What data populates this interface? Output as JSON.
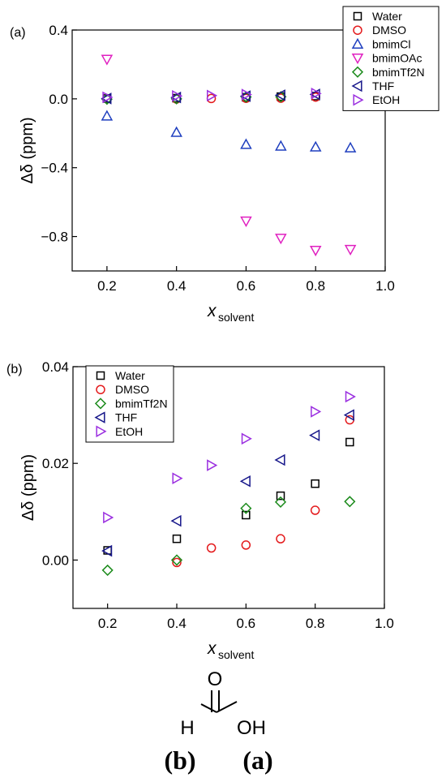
{
  "molecule": {
    "atom_o": "O",
    "atom_h": "H",
    "atom_oh": "OH"
  },
  "bottom_labels": {
    "left": "(b)",
    "right": "(a)"
  },
  "chart_data": [
    {
      "panel_label": "(a)",
      "type": "scatter",
      "xlabel_main": "x",
      "xlabel_sub": "solvent",
      "ylabel": "Δδ (ppm)",
      "xlim": [
        0.1,
        1.0
      ],
      "ylim": [
        -1.0,
        0.4
      ],
      "xticks": [
        0.2,
        0.4,
        0.6,
        0.8,
        1.0
      ],
      "xtick_labels": [
        "0.2",
        "0.4",
        "0.6",
        "0.8",
        "1.0"
      ],
      "yticks": [
        0.4,
        0.0,
        -0.4,
        -0.8
      ],
      "ytick_labels": [
        "0.4",
        "0.0",
        "−0.4",
        "−0.8"
      ],
      "grid": false,
      "legend_position": "top-right",
      "series": [
        {
          "name": "Water",
          "marker": "square",
          "color": "#000000",
          "x": [
            0.2,
            0.4,
            0.6,
            0.7,
            0.8,
            0.9
          ],
          "y": [
            0.002,
            0.004,
            0.009,
            0.013,
            0.016,
            0.024
          ]
        },
        {
          "name": "DMSO",
          "marker": "circle",
          "color": "#e41a1c",
          "x": [
            0.4,
            0.5,
            0.6,
            0.7,
            0.8,
            0.9
          ],
          "y": [
            -0.001,
            0.002,
            0.003,
            0.004,
            0.01,
            0.029
          ]
        },
        {
          "name": "bmimCl",
          "marker": "triangle-up",
          "color": "#1f3fbf",
          "x": [
            0.2,
            0.4,
            0.6,
            0.7,
            0.8,
            0.9
          ],
          "y": [
            -0.1,
            -0.195,
            -0.265,
            -0.275,
            -0.28,
            -0.285
          ]
        },
        {
          "name": "bmimOAc",
          "marker": "triangle-down",
          "color": "#e020c0",
          "x": [
            0.2,
            0.6,
            0.7,
            0.8,
            0.9
          ],
          "y": [
            0.23,
            -0.71,
            -0.81,
            -0.88,
            -0.875
          ]
        },
        {
          "name": "bmimTf2N",
          "marker": "diamond",
          "color": "#1a8a1a",
          "x": [
            0.2,
            0.4,
            0.6,
            0.7,
            0.9
          ],
          "y": [
            -0.002,
            0.0,
            0.011,
            0.012,
            0.012
          ]
        },
        {
          "name": "THF",
          "marker": "triangle-left",
          "color": "#16168a",
          "x": [
            0.2,
            0.4,
            0.6,
            0.7,
            0.8,
            0.9
          ],
          "y": [
            0.002,
            0.008,
            0.016,
            0.021,
            0.026,
            0.03
          ]
        },
        {
          "name": "EtOH",
          "marker": "triangle-right",
          "color": "#9b30e0",
          "x": [
            0.2,
            0.4,
            0.5,
            0.6,
            0.8,
            0.9
          ],
          "y": [
            0.009,
            0.017,
            0.019,
            0.025,
            0.031,
            0.034
          ]
        }
      ]
    },
    {
      "panel_label": "(b)",
      "type": "scatter",
      "xlabel_main": "x",
      "xlabel_sub": "solvent",
      "ylabel": "Δδ (ppm)",
      "xlim": [
        0.1,
        1.0
      ],
      "ylim": [
        -0.01,
        0.04
      ],
      "xticks": [
        0.2,
        0.4,
        0.6,
        0.8,
        1.0
      ],
      "xtick_labels": [
        "0.2",
        "0.4",
        "0.6",
        "0.8",
        "1.0"
      ],
      "yticks": [
        0.04,
        0.02,
        0.0
      ],
      "ytick_labels": [
        "0.04",
        "0.02",
        "0.00"
      ],
      "grid": false,
      "legend_position": "top-left",
      "series": [
        {
          "name": "Water",
          "marker": "square",
          "color": "#000000",
          "x": [
            0.2,
            0.4,
            0.6,
            0.7,
            0.8,
            0.9
          ],
          "y": [
            0.002,
            0.0044,
            0.0093,
            0.0133,
            0.0158,
            0.0244
          ]
        },
        {
          "name": "DMSO",
          "marker": "circle",
          "color": "#e41a1c",
          "x": [
            0.4,
            0.5,
            0.6,
            0.7,
            0.8,
            0.9
          ],
          "y": [
            -0.0005,
            0.0025,
            0.0031,
            0.0044,
            0.0103,
            0.029
          ]
        },
        {
          "name": "bmimTf2N",
          "marker": "diamond",
          "color": "#1a8a1a",
          "x": [
            0.2,
            0.4,
            0.6,
            0.7,
            0.9
          ],
          "y": [
            -0.0021,
            0.0,
            0.0107,
            0.012,
            0.0121
          ]
        },
        {
          "name": "THF",
          "marker": "triangle-left",
          "color": "#16168a",
          "x": [
            0.2,
            0.4,
            0.6,
            0.7,
            0.8,
            0.9
          ],
          "y": [
            0.0019,
            0.0081,
            0.0163,
            0.0207,
            0.0258,
            0.03
          ]
        },
        {
          "name": "EtOH",
          "marker": "triangle-right",
          "color": "#9b30e0",
          "x": [
            0.2,
            0.4,
            0.5,
            0.6,
            0.8,
            0.9
          ],
          "y": [
            0.0088,
            0.0169,
            0.0196,
            0.0251,
            0.0307,
            0.0338
          ]
        }
      ]
    }
  ]
}
